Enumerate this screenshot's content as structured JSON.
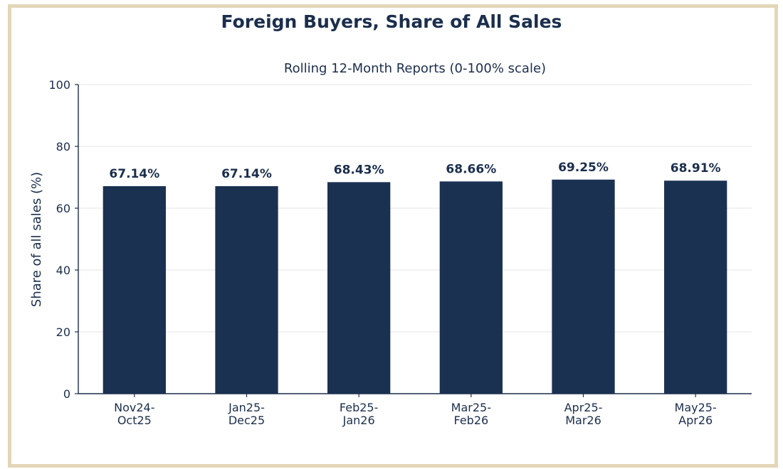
{
  "colors": {
    "bar": "#1b3152",
    "text": "#1b2e4d",
    "frame": "#e3d6b8",
    "grid": "#e4e4e4",
    "axis": "#1b2e4d"
  },
  "chart_data": {
    "type": "bar",
    "title": "Foreign Buyers, Share of All Sales",
    "subtitle": "Rolling 12-Month Reports  (0-100% scale)",
    "xlabel": "",
    "ylabel": "Share of all sales (%)",
    "ylim": [
      0,
      100
    ],
    "yticks": [
      0,
      20,
      40,
      60,
      80,
      100
    ],
    "grid": true,
    "categories": [
      [
        "Nov24-",
        "Oct25"
      ],
      [
        "Jan25-",
        "Dec25"
      ],
      [
        "Feb25-",
        "Jan26"
      ],
      [
        "Mar25-",
        "Feb26"
      ],
      [
        "Apr25-",
        "Mar26"
      ],
      [
        "May25-",
        "Apr26"
      ]
    ],
    "values": [
      67.14,
      67.14,
      68.43,
      68.66,
      69.25,
      68.91
    ],
    "data_labels": [
      "67.14%",
      "67.14%",
      "68.43%",
      "68.66%",
      "69.25%",
      "68.91%"
    ]
  }
}
